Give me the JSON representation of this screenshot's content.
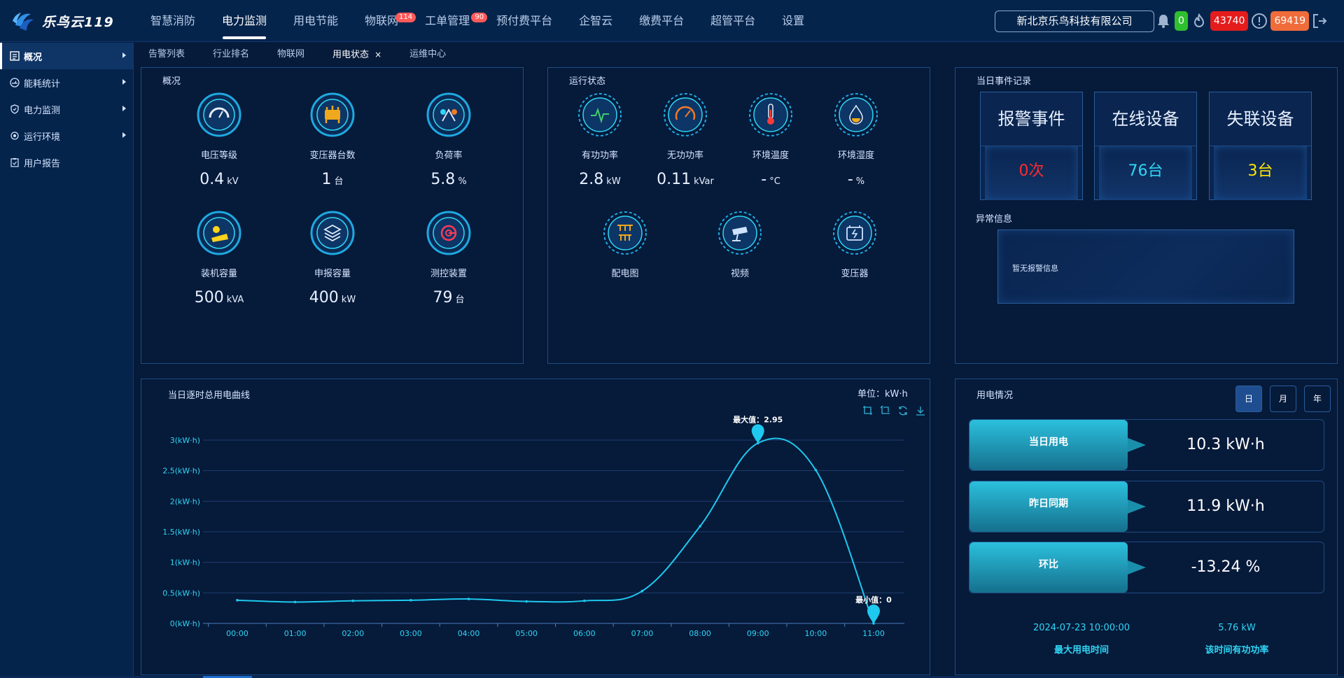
{
  "app": {
    "brand": "乐鸟云119",
    "nav": [
      {
        "label": "智慧消防",
        "active": false
      },
      {
        "label": "电力监测",
        "active": true
      },
      {
        "label": "用电节能",
        "active": false
      },
      {
        "label": "物联网",
        "badge": "114"
      },
      {
        "label": "工单管理",
        "badge": "90"
      },
      {
        "label": "预付费平台"
      },
      {
        "label": "企智云"
      },
      {
        "label": "缴费平台"
      },
      {
        "label": "超管平台"
      },
      {
        "label": "设置"
      }
    ],
    "company": "新北京乐鸟科技有限公司",
    "status": {
      "bell_count": "0",
      "fire_count": "43740",
      "alert_count": "69419"
    }
  },
  "sidebar": {
    "items": [
      {
        "label": "概况",
        "icon": "list-icon",
        "active": true,
        "arrow": true
      },
      {
        "label": "能耗统计",
        "icon": "gauge-icon",
        "arrow": true
      },
      {
        "label": "电力监测",
        "icon": "shield-icon",
        "arrow": true
      },
      {
        "label": "运行环境",
        "icon": "target-icon",
        "arrow": true
      },
      {
        "label": "用户报告",
        "icon": "clipboard-icon",
        "arrow": false
      }
    ]
  },
  "tabs": [
    {
      "label": "告警列表"
    },
    {
      "label": "行业排名"
    },
    {
      "label": "物联网"
    },
    {
      "label": "用电状态",
      "active": true,
      "close": "×"
    },
    {
      "label": "运维中心"
    }
  ],
  "overview": {
    "title": "概况",
    "items": [
      {
        "label": "电压等级",
        "value": "0.4",
        "unit": "kV",
        "icon": "voltage-meter-icon"
      },
      {
        "label": "变压器台数",
        "value": "1",
        "unit": "台",
        "icon": "transformer-icon"
      },
      {
        "label": "负荷率",
        "value": "5.8",
        "unit": "%",
        "icon": "load-rate-icon"
      },
      {
        "label": "装机容量",
        "value": "500",
        "unit": "kVA",
        "icon": "solar-panel-icon"
      },
      {
        "label": "申报容量",
        "value": "400",
        "unit": "kW",
        "icon": "layers-icon"
      },
      {
        "label": "测控装置",
        "value": "79",
        "unit": "台",
        "icon": "control-device-icon"
      }
    ]
  },
  "running": {
    "title": "运行状态",
    "items": [
      {
        "label": "有功功率",
        "value": "2.8",
        "unit": "kW",
        "icon": "pulse-icon"
      },
      {
        "label": "无功功率",
        "value": "0.11",
        "unit": "kVar",
        "icon": "speedometer-icon"
      },
      {
        "label": "环境温度",
        "value": "-",
        "unit": "°C",
        "icon": "thermometer-icon"
      },
      {
        "label": "环境湿度",
        "value": "-",
        "unit": "%",
        "icon": "humidity-icon"
      }
    ],
    "links": [
      {
        "label": "配电图",
        "icon": "distribution-icon"
      },
      {
        "label": "视频",
        "icon": "camera-icon"
      },
      {
        "label": "变压器",
        "icon": "battery-icon"
      }
    ]
  },
  "events": {
    "title": "当日事件记录",
    "cards": [
      {
        "label": "报警事件",
        "value": "0次",
        "color": "#ff2b2b"
      },
      {
        "label": "在线设备",
        "value": "76台",
        "color": "#2fd6f5"
      },
      {
        "label": "失联设备",
        "value": "3台",
        "color": "#ffe600"
      }
    ],
    "abnormal_title": "异常信息",
    "abnormal_text": "暂无报警信息"
  },
  "curve": {
    "title": "当日逐时总用电曲线",
    "unit_label": "单位：kW·h",
    "tools": [
      "zoom-icon",
      "zoom-reset-icon",
      "restore-icon",
      "download-icon"
    ]
  },
  "chart_data": {
    "type": "line",
    "categories": [
      "00:00",
      "01:00",
      "02:00",
      "03:00",
      "04:00",
      "05:00",
      "06:00",
      "07:00",
      "08:00",
      "09:00",
      "10:00",
      "11:00"
    ],
    "values": [
      0.38,
      0.35,
      0.37,
      0.38,
      0.4,
      0.36,
      0.37,
      0.53,
      1.59,
      2.95,
      2.51,
      0
    ],
    "ylim": [
      0,
      3
    ],
    "yticks": [
      "0(kW·h)",
      "0.5(kW·h)",
      "1(kW·h)",
      "1.5(kW·h)",
      "2(kW·h)",
      "2.5(kW·h)",
      "3(kW·h)"
    ],
    "ytick_values": [
      0,
      0.5,
      1,
      1.5,
      2,
      2.5,
      3
    ],
    "max_label": "最大值：2.95",
    "min_label": "最小值：0",
    "max_index": 9,
    "min_index": 11,
    "color": "#1ec8ee",
    "grid": true
  },
  "usage": {
    "title": "用电情况",
    "periods": [
      {
        "label": "日",
        "active": true
      },
      {
        "label": "月",
        "active": false
      },
      {
        "label": "年",
        "active": false
      }
    ],
    "rows": [
      {
        "label": "当日用电",
        "value": "10.3 kW·h"
      },
      {
        "label": "昨日同期",
        "value": "11.9 kW·h"
      },
      {
        "label": "环比",
        "value": "-13.24 %"
      }
    ],
    "peak_time": "2024-07-23 10:00:00",
    "peak_time_label": "最大用电时间",
    "peak_power": "5.76 kW",
    "peak_power_label": "该时间有功功率"
  }
}
